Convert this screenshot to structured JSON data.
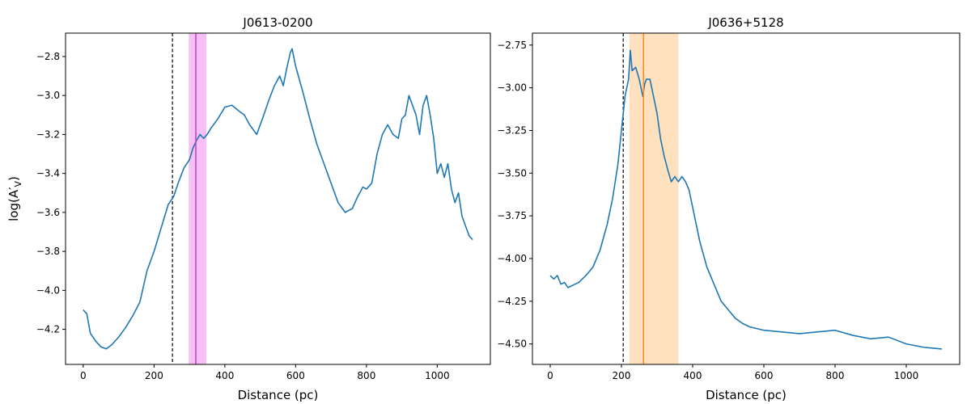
{
  "chart_data": [
    {
      "type": "line",
      "title": "J0613-0200",
      "xlabel": "Distance (pc)",
      "ylabel": "log(A′",
      "ylabel_sub": "V",
      "ylabel_close": ")",
      "xlim": [
        -50,
        1150
      ],
      "ylim": [
        -4.38,
        -2.68
      ],
      "xticks": [
        0,
        200,
        400,
        600,
        800,
        1000
      ],
      "xtick_labels": [
        "0",
        "200",
        "400",
        "600",
        "800",
        "1000"
      ],
      "yticks": [
        -4.2,
        -4.0,
        -3.8,
        -3.6,
        -3.4,
        -3.2,
        -3.0,
        -2.8
      ],
      "ytick_labels": [
        "−4.2",
        "−4.0",
        "−3.8",
        "−3.6",
        "−3.4",
        "−3.2",
        "−3.0",
        "−2.8"
      ],
      "line_color": "#1f77b4",
      "dashed_vline_x": 252,
      "band": {
        "x0": 298,
        "x1": 348,
        "color": "#ee82ee",
        "opacity": 0.5
      },
      "marker_vline": {
        "x": 318,
        "color": "#c040c0"
      },
      "grid": false,
      "series": [
        {
          "x": [
            0,
            10,
            20,
            35,
            50,
            65,
            80,
            100,
            120,
            140,
            160,
            180,
            200,
            220,
            240,
            255,
            270,
            285,
            300,
            310,
            320,
            330,
            340,
            350,
            360,
            380,
            400,
            420,
            440,
            455,
            470,
            490,
            510,
            525,
            540,
            555,
            565,
            575,
            585,
            590,
            600,
            620,
            640,
            660,
            680,
            700,
            720,
            740,
            760,
            775,
            790,
            800,
            815,
            830,
            845,
            860,
            875,
            890,
            900,
            910,
            920,
            930,
            940,
            950,
            960,
            970,
            980,
            990,
            1000,
            1010,
            1020,
            1030,
            1040,
            1050,
            1060,
            1070,
            1080,
            1090,
            1100
          ],
          "y": [
            -4.1,
            -4.12,
            -4.22,
            -4.26,
            -4.29,
            -4.3,
            -4.28,
            -4.24,
            -4.19,
            -4.13,
            -4.06,
            -3.9,
            -3.8,
            -3.68,
            -3.56,
            -3.52,
            -3.44,
            -3.37,
            -3.33,
            -3.27,
            -3.23,
            -3.2,
            -3.22,
            -3.2,
            -3.17,
            -3.12,
            -3.06,
            -3.05,
            -3.08,
            -3.1,
            -3.15,
            -3.2,
            -3.1,
            -3.02,
            -2.95,
            -2.9,
            -2.95,
            -2.86,
            -2.78,
            -2.76,
            -2.85,
            -2.98,
            -3.12,
            -3.25,
            -3.35,
            -3.45,
            -3.55,
            -3.6,
            -3.58,
            -3.52,
            -3.47,
            -3.48,
            -3.45,
            -3.3,
            -3.2,
            -3.15,
            -3.2,
            -3.22,
            -3.12,
            -3.1,
            -3.0,
            -3.05,
            -3.1,
            -3.2,
            -3.05,
            -3.0,
            -3.1,
            -3.22,
            -3.4,
            -3.35,
            -3.42,
            -3.35,
            -3.48,
            -3.55,
            -3.5,
            -3.62,
            -3.67,
            -3.72,
            -3.74
          ]
        }
      ]
    },
    {
      "type": "line",
      "title": "J0636+5128",
      "xlabel": "Distance (pc)",
      "ylabel": "",
      "xlim": [
        -50,
        1150
      ],
      "ylim": [
        -4.62,
        -2.68
      ],
      "xticks": [
        0,
        200,
        400,
        600,
        800,
        1000
      ],
      "xtick_labels": [
        "0",
        "200",
        "400",
        "600",
        "800",
        "1000"
      ],
      "yticks": [
        -4.5,
        -4.25,
        -4.0,
        -3.75,
        -3.5,
        -3.25,
        -3.0,
        -2.75
      ],
      "ytick_labels": [
        "−4.50",
        "−4.25",
        "−4.00",
        "−3.75",
        "−3.50",
        "−3.25",
        "−3.00",
        "−2.75"
      ],
      "line_color": "#1f77b4",
      "dashed_vline_x": 205,
      "band": {
        "x0": 222,
        "x1": 360,
        "color": "#ffdab4",
        "opacity": 0.85
      },
      "marker_vline": {
        "x": 262,
        "color": "#ff8c1a"
      },
      "grid": false,
      "series": [
        {
          "x": [
            0,
            10,
            20,
            30,
            40,
            50,
            60,
            80,
            100,
            120,
            140,
            160,
            175,
            190,
            200,
            210,
            215,
            220,
            225,
            230,
            240,
            250,
            260,
            265,
            270,
            280,
            290,
            300,
            310,
            320,
            330,
            340,
            350,
            360,
            370,
            380,
            390,
            400,
            420,
            440,
            460,
            480,
            500,
            520,
            540,
            560,
            580,
            600,
            650,
            700,
            750,
            800,
            850,
            900,
            950,
            1000,
            1050,
            1100
          ],
          "y": [
            -4.1,
            -4.12,
            -4.1,
            -4.15,
            -4.14,
            -4.17,
            -4.16,
            -4.14,
            -4.1,
            -4.05,
            -3.95,
            -3.8,
            -3.65,
            -3.45,
            -3.25,
            -3.05,
            -3.0,
            -2.95,
            -2.78,
            -2.9,
            -2.88,
            -2.95,
            -3.05,
            -2.98,
            -2.95,
            -2.95,
            -3.05,
            -3.15,
            -3.3,
            -3.4,
            -3.48,
            -3.55,
            -3.52,
            -3.55,
            -3.52,
            -3.55,
            -3.6,
            -3.7,
            -3.9,
            -4.05,
            -4.15,
            -4.25,
            -4.3,
            -4.35,
            -4.38,
            -4.4,
            -4.41,
            -4.42,
            -4.43,
            -4.44,
            -4.43,
            -4.42,
            -4.45,
            -4.47,
            -4.46,
            -4.5,
            -4.52,
            -4.53
          ]
        }
      ]
    }
  ]
}
